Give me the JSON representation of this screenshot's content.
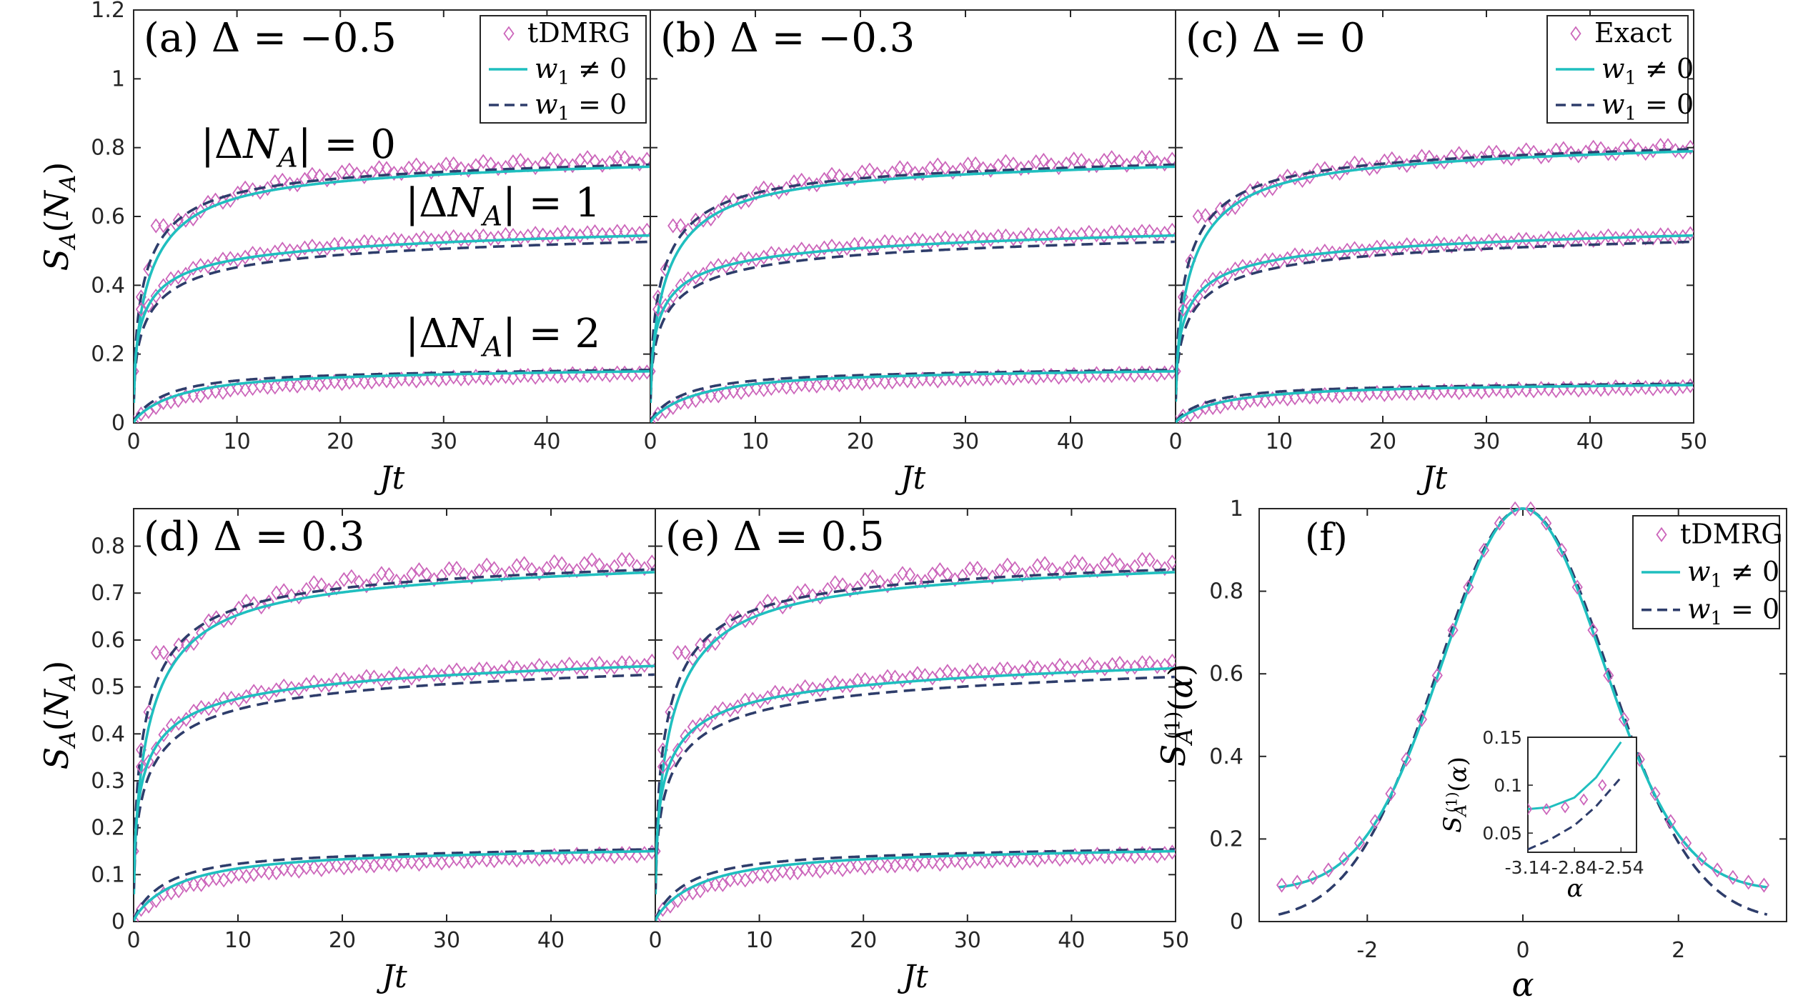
{
  "colors": {
    "tdmrg": "#CC66BB",
    "w1_nonzero": "#1FBFBF",
    "w1_zero": "#2E3D6B",
    "axis": "#262626"
  },
  "chart_data": [
    {
      "id": "a",
      "type": "line",
      "panel_label": "(a)",
      "title": "Δ = −0.5",
      "xlabel": "Jt",
      "ylabel": "S_A(N_A)",
      "xlim": [
        0,
        50
      ],
      "ylim": [
        0,
        1.2
      ],
      "xticks": [
        "0",
        "10",
        "20",
        "30",
        "40"
      ],
      "yticks": [
        "0",
        "0.2",
        "0.4",
        "0.6",
        "0.8",
        "1",
        "1.2"
      ],
      "legend": {
        "position": "top-right",
        "entries": [
          "tDMRG",
          "w₁ ≠ 0",
          "w₁ = 0"
        ]
      },
      "annotations": [
        "|ΔN_A| = 0",
        "|ΔN_A| = 1",
        "|ΔN_A| = 2"
      ],
      "series": [
        {
          "name": "|ΔN_A| = 0",
          "w1_nonzero_asymptote": 0.757,
          "w1_zero_asymptote": 0.757,
          "w1_nonzero_at_t50": 0.745,
          "tdmrg_at_t50": 0.765,
          "early_peak": [
            2,
            0.54
          ]
        },
        {
          "name": "|ΔN_A| = 1",
          "w1_nonzero_asymptote": 0.548,
          "w1_zero_asymptote": 0.535,
          "w1_nonzero_at_t50": 0.545,
          "tdmrg_at_t50": 0.555
        },
        {
          "name": "|ΔN_A| = 2",
          "w1_nonzero_asymptote": 0.153,
          "w1_zero_asymptote": 0.158,
          "w1_nonzero_at_t50": 0.15,
          "tdmrg_at_t50": 0.145
        }
      ]
    },
    {
      "id": "b",
      "type": "line",
      "panel_label": "(b)",
      "title": "Δ = −0.3",
      "xlabel": "Jt",
      "xlim": [
        0,
        50
      ],
      "ylim": [
        0,
        1.2
      ],
      "xticks": [
        "0",
        "10",
        "20",
        "30",
        "40"
      ],
      "series": [
        {
          "name": "|ΔN_A| = 0",
          "w1_nonzero_at_t50": 0.745,
          "tdmrg_at_t50": 0.765,
          "early_peak": [
            2,
            0.54
          ]
        },
        {
          "name": "|ΔN_A| = 1",
          "w1_nonzero_at_t50": 0.545,
          "tdmrg_at_t50": 0.555
        },
        {
          "name": "|ΔN_A| = 2",
          "w1_nonzero_at_t50": 0.15,
          "tdmrg_at_t50": 0.145
        }
      ]
    },
    {
      "id": "c",
      "type": "line",
      "panel_label": "(c)",
      "title": "Δ = 0",
      "xlabel": "Jt",
      "xlim": [
        0,
        50
      ],
      "ylim": [
        0,
        1.2
      ],
      "xticks": [
        "0",
        "10",
        "20",
        "30",
        "40",
        "50"
      ],
      "legend": {
        "position": "top-right",
        "entries": [
          "Exact",
          "w₁ ≠ 0",
          "w₁ = 0"
        ]
      },
      "series": [
        {
          "name": "|ΔN_A| = 0",
          "w1_nonzero_at_t50": 0.79,
          "tdmrg_at_t50": 0.8,
          "early_peak": [
            2,
            0.54
          ]
        },
        {
          "name": "|ΔN_A| = 1",
          "w1_nonzero_at_t50": 0.545,
          "tdmrg_at_t50": 0.545
        },
        {
          "name": "|ΔN_A| = 2",
          "w1_nonzero_at_t50": 0.11,
          "tdmrg_at_t50": 0.105
        }
      ]
    },
    {
      "id": "d",
      "type": "line",
      "panel_label": "(d)",
      "title": "Δ = 0.3",
      "xlabel": "Jt",
      "ylabel": "S_A(N_A)",
      "xlim": [
        0,
        50
      ],
      "ylim": [
        0,
        0.88
      ],
      "xticks": [
        "0",
        "10",
        "20",
        "30",
        "40"
      ],
      "yticks": [
        "0",
        "0.1",
        "0.2",
        "0.3",
        "0.4",
        "0.5",
        "0.6",
        "0.7",
        "0.8"
      ],
      "series": [
        {
          "name": "|ΔN_A| = 0",
          "w1_nonzero_at_t50": 0.745,
          "tdmrg_at_t50": 0.765,
          "early_peak": [
            2,
            0.54
          ]
        },
        {
          "name": "|ΔN_A| = 1",
          "w1_nonzero_at_t50": 0.545,
          "tdmrg_at_t50": 0.55
        },
        {
          "name": "|ΔN_A| = 2",
          "w1_nonzero_at_t50": 0.15,
          "tdmrg_at_t50": 0.145
        }
      ]
    },
    {
      "id": "e",
      "type": "line",
      "panel_label": "(e)",
      "title": "Δ = 0.5",
      "xlabel": "Jt",
      "xlim": [
        0,
        50
      ],
      "ylim": [
        0,
        0.88
      ],
      "xticks": [
        "0",
        "10",
        "20",
        "30",
        "40",
        "50"
      ],
      "series": [
        {
          "name": "|ΔN_A| = 0",
          "w1_nonzero_at_t50": 0.745,
          "tdmrg_at_t50": 0.765,
          "early_peak": [
            2,
            0.54
          ]
        },
        {
          "name": "|ΔN_A| = 1",
          "w1_nonzero_at_t50": 0.54,
          "tdmrg_at_t50": 0.55
        },
        {
          "name": "|ΔN_A| = 2",
          "w1_nonzero_at_t50": 0.15,
          "tdmrg_at_t50": 0.145
        }
      ]
    },
    {
      "id": "f",
      "type": "line",
      "panel_label": "(f)",
      "xlabel": "α",
      "ylabel": "S_A^(1)(α)",
      "xlim": [
        -3.14,
        3.14
      ],
      "ylim": [
        0,
        1
      ],
      "xticks": [
        "-2",
        "0",
        "2"
      ],
      "yticks": [
        "0",
        "0.2",
        "0.4",
        "0.6",
        "0.8",
        "1"
      ],
      "legend": {
        "position": "top-right",
        "entries": [
          "tDMRG",
          "w₁ ≠ 0",
          "w₁ = 0"
        ]
      },
      "series": [
        {
          "name": "w₁ ≠ 0",
          "model": "Gaussian floor",
          "sigma": 1.02,
          "value_at_0": 1.0,
          "value_at_pi": 0.075
        },
        {
          "name": "w₁ = 0",
          "model": "Gaussian",
          "sigma": 1.1,
          "value_at_0": 1.0,
          "value_at_pi": 0.033
        },
        {
          "name": "tDMRG",
          "value_at_0": 1.0,
          "value_at_pi": 0.075
        }
      ],
      "inset": {
        "xlabel": "α",
        "ylabel": "S_A^(1)(α)",
        "xlim": [
          -3.14,
          -2.44
        ],
        "ylim": [
          0.03,
          0.15
        ],
        "xticks": [
          "-3.14",
          "-2.84",
          "-2.54"
        ],
        "yticks": [
          "0.05",
          "0.1",
          "0.15"
        ],
        "series": [
          {
            "name": "w₁ ≠ 0",
            "points": [
              [
                -3.14,
                0.075
              ],
              [
                -3.0,
                0.077
              ],
              [
                -2.84,
                0.087
              ],
              [
                -2.7,
                0.108
              ],
              [
                -2.54,
                0.145
              ]
            ]
          },
          {
            "name": "w₁ = 0",
            "points": [
              [
                -3.14,
                0.033
              ],
              [
                -3.0,
                0.043
              ],
              [
                -2.84,
                0.058
              ],
              [
                -2.7,
                0.078
              ],
              [
                -2.54,
                0.108
              ]
            ]
          },
          {
            "name": "tDMRG",
            "points": [
              [
                -3.14,
                0.075
              ],
              [
                -3.02,
                0.075
              ],
              [
                -2.9,
                0.077
              ],
              [
                -2.78,
                0.085
              ],
              [
                -2.66,
                0.1
              ]
            ]
          }
        ]
      }
    }
  ]
}
